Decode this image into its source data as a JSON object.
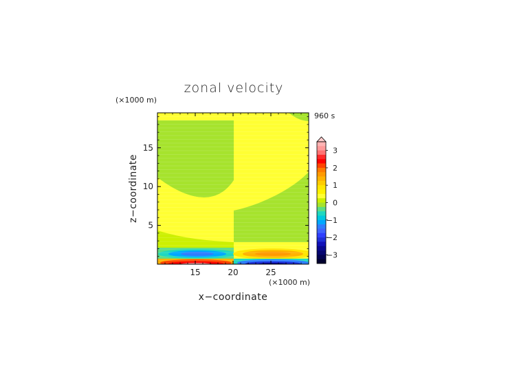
{
  "chart_data": {
    "type": "heatmap",
    "title": "zonal velocity",
    "time_label": "960 s",
    "xlabel": "x−coordinate",
    "ylabel": "z−coordinate",
    "x_unit": "(×1000 m)",
    "y_unit": "(×1000 m)",
    "xlim": [
      10,
      30
    ],
    "ylim": [
      0,
      19.5
    ],
    "x_ticks": [
      15,
      20,
      25
    ],
    "y_ticks": [
      5,
      10,
      15
    ],
    "colorbar": {
      "ticks": [
        3,
        2,
        1,
        0,
        -1,
        -2,
        -3
      ],
      "levels": [
        3.5,
        3.25,
        3,
        2.75,
        2.5,
        2.25,
        2,
        1.75,
        1.5,
        1.25,
        1,
        0.75,
        0.5,
        0.25,
        0,
        -0.25,
        -0.5,
        -0.75,
        -1,
        -1.25,
        -1.5,
        -1.75,
        -2,
        -2.25,
        -2.5,
        -2.75,
        -3,
        -3.25,
        -3.5
      ],
      "colors": [
        "#ffb3b3",
        "#ff9999",
        "#ff7373",
        "#ff2a2a",
        "#ff0000",
        "#ff4400",
        "#ff7a00",
        "#ff9a00",
        "#ffb300",
        "#ffcc00",
        "#ffe600",
        "#fff200",
        "#ffff33",
        "#ccf000",
        "#a6e32d",
        "#5cdd84",
        "#1fd8c0",
        "#00c8e0",
        "#00a8ff",
        "#2f7dff",
        "#3f63ff",
        "#2f3fff",
        "#1f2fd8",
        "#1010b8",
        "#080890",
        "#050570",
        "#020250",
        "#010130"
      ],
      "extend_top": true
    },
    "regions_description": "",
    "field": [
      {
        "x": [
          10,
          19.5
        ],
        "z": [
          18.8,
          19.5
        ],
        "u": 0.1
      },
      {
        "x": [
          10,
          19.5
        ],
        "z": [
          11.5,
          18.8
        ],
        "u": -0.1
      },
      {
        "x": [
          10,
          19.5
        ],
        "z": [
          7.2,
          11.5
        ],
        "u": 0.1
      },
      {
        "x": [
          10,
          19.5
        ],
        "z": [
          2.2,
          7.2
        ],
        "u": 0.2
      },
      {
        "x": [
          10,
          19.5
        ],
        "z": [
          0.6,
          2.2
        ],
        "u": -0.6
      },
      {
        "x": [
          10,
          19.5
        ],
        "z": [
          0,
          0.6
        ],
        "u": 2.0
      },
      {
        "x": [
          20,
          30
        ],
        "z": [
          18.8,
          19.5
        ],
        "u": -0.1
      },
      {
        "x": [
          20,
          30
        ],
        "z": [
          11.5,
          18.8
        ],
        "u": 0.1
      },
      {
        "x": [
          20,
          30
        ],
        "z": [
          7.2,
          11.5
        ],
        "u": -0.1
      },
      {
        "x": [
          20,
          30
        ],
        "z": [
          2.2,
          7.2
        ],
        "u": 0.1
      },
      {
        "x": [
          20,
          30
        ],
        "z": [
          0.6,
          2.2
        ],
        "u": 0.6
      },
      {
        "x": [
          20,
          30
        ],
        "z": [
          0,
          0.6
        ],
        "u": -2.0
      }
    ]
  }
}
